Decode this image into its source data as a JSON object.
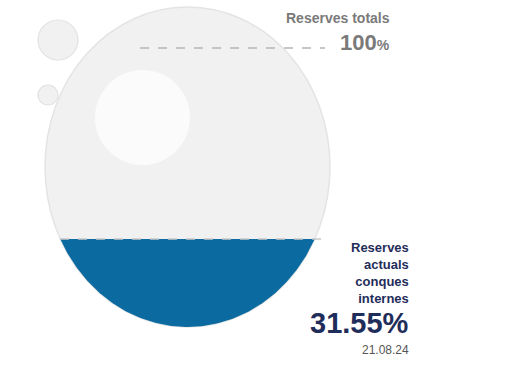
{
  "chart_data": {
    "type": "level_gauge",
    "categories": [
      "Reserves totals",
      "Reserves actuals conques internes"
    ],
    "values": [
      100,
      31.55
    ],
    "value_labels": [
      "100%",
      "31.55%"
    ],
    "date": "21.08.24",
    "color": "#0b6a9f",
    "ylim": [
      0,
      100
    ],
    "tick_labels": false
  }
}
